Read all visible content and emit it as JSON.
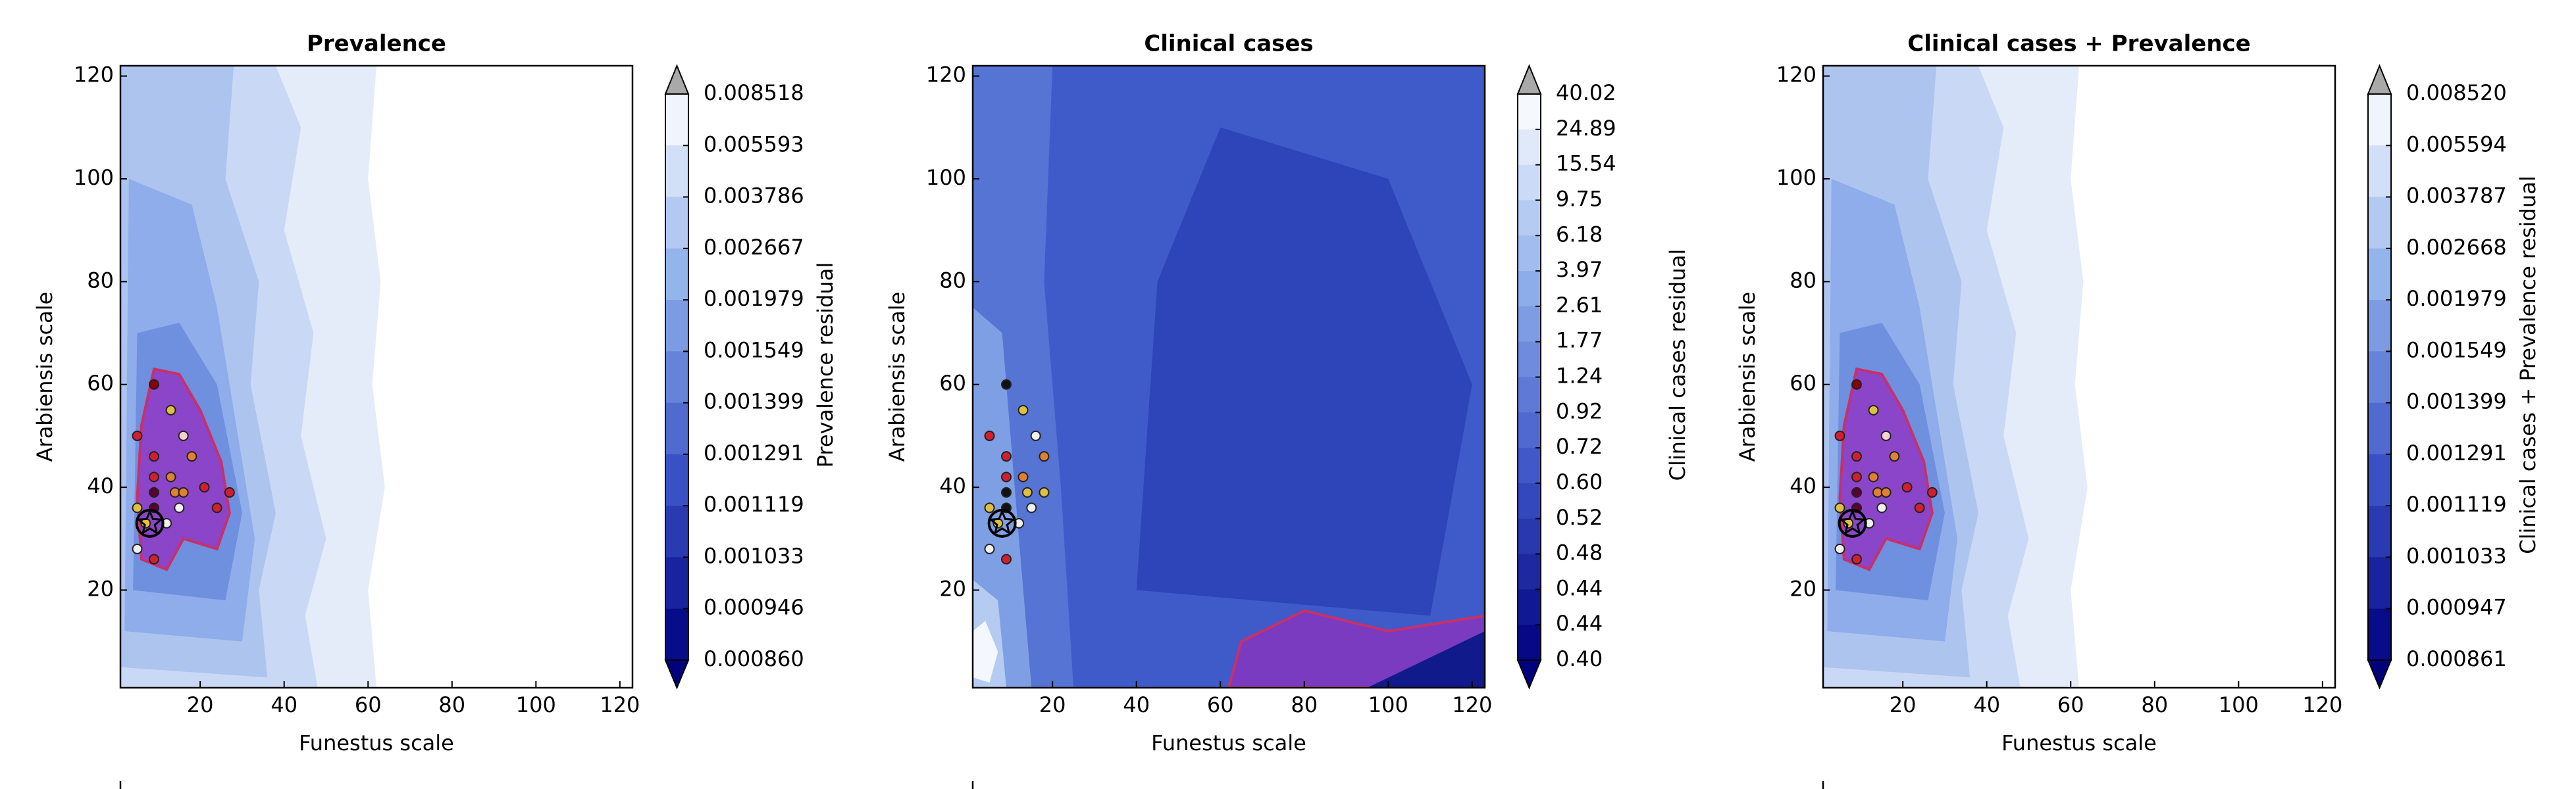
{
  "chart_data": [
    {
      "type": "contour",
      "title": "Prevalence",
      "xlabel": "Funestus scale",
      "ylabel": "Arabiensis scale",
      "xlim": [
        1,
        123
      ],
      "ylim": [
        1,
        122
      ],
      "xticks": [
        20,
        40,
        60,
        80,
        100,
        120
      ],
      "yticks": [
        20,
        40,
        60,
        80,
        100,
        120
      ],
      "colorbar": {
        "label": "Prevalence residual",
        "ticks": [
          0.008518,
          0.005593,
          0.003786,
          0.002667,
          0.001979,
          0.001549,
          0.001399,
          0.001291,
          0.001119,
          0.001033,
          0.000946,
          {
            "value": 0.00086,
            "label": "0.000860"
          }
        ],
        "colors": [
          "#ffffff",
          "#8fb0eb",
          "#3d55c8",
          "#00007f"
        ],
        "extend_colors": [
          "#a9a9a9",
          "#00007f"
        ]
      },
      "points": {
        "x": [
          9,
          13,
          5,
          9,
          16,
          18,
          9,
          13,
          9,
          14,
          16,
          9,
          5,
          15,
          7,
          12,
          5,
          9,
          24,
          21,
          27
        ],
        "y": [
          60,
          55,
          50,
          46,
          50,
          46,
          42,
          42,
          39,
          39,
          39,
          36,
          36,
          36,
          33,
          33,
          28,
          26,
          36,
          40,
          39
        ],
        "colors": [
          "#8b0000",
          "#e0c040",
          "#d02030",
          "#d02030",
          "#f5d0d0",
          "#e08030",
          "#d02030",
          "#e08030",
          "#5a0030",
          "#e08030",
          "#e08030",
          "#5a0030",
          "#e0c040",
          "#f0f0f0",
          "#e0c040",
          "#f0f0f0",
          "#f0f0f0",
          "#d02030",
          "#d02030",
          "#d02030",
          "#d02030"
        ]
      }
    },
    {
      "type": "contour",
      "title": "Clinical cases",
      "xlabel": "Funestus scale",
      "ylabel": "Arabiensis scale",
      "xlim": [
        1,
        123
      ],
      "ylim": [
        1,
        122
      ],
      "xticks": [
        20,
        40,
        60,
        80,
        100,
        120
      ],
      "yticks": [
        20,
        40,
        60,
        80,
        100,
        120
      ],
      "colorbar": {
        "label": "Clinical cases residual",
        "ticks": [
          40.02,
          24.89,
          15.54,
          9.75,
          6.18,
          3.97,
          2.61,
          1.77,
          1.24,
          0.92,
          0.72,
          {
            "value": 0.6,
            "label": "0.60"
          },
          0.52,
          0.48,
          0.44,
          0.44,
          {
            "value": 0.4,
            "label": "0.40"
          }
        ],
        "colors": [
          "#ffffff",
          "#8fb0eb",
          "#3d55c8",
          "#00007f"
        ],
        "extend_colors": [
          "#a9a9a9",
          "#00007f"
        ]
      },
      "points": {
        "x": [
          9,
          13,
          5,
          9,
          16,
          18,
          9,
          13,
          9,
          14,
          18,
          9,
          5,
          15,
          7,
          12,
          5,
          9
        ],
        "y": [
          60,
          55,
          50,
          46,
          50,
          46,
          42,
          42,
          39,
          39,
          39,
          36,
          36,
          36,
          33,
          33,
          28,
          26
        ],
        "colors": [
          "#111111",
          "#e0c040",
          "#d02030",
          "#d02030",
          "#f0f0f0",
          "#e08030",
          "#d02030",
          "#e08030",
          "#111111",
          "#e0c040",
          "#e0c040",
          "#111111",
          "#e0c040",
          "#f0f0f0",
          "#e0c040",
          "#f0f0f0",
          "#f0f0f0",
          "#d02030"
        ]
      }
    },
    {
      "type": "contour",
      "title": "Clinical cases + Prevalence",
      "xlabel": "Funestus scale",
      "ylabel": "Arabiensis scale",
      "xlim": [
        1,
        123
      ],
      "ylim": [
        1,
        122
      ],
      "xticks": [
        20,
        40,
        60,
        80,
        100,
        120
      ],
      "yticks": [
        20,
        40,
        60,
        80,
        100,
        120
      ],
      "colorbar": {
        "label": "Clinical cases + Prevalence residual",
        "ticks": [
          {
            "value": 0.00852,
            "label": "0.008520"
          },
          0.005594,
          0.003787,
          0.002668,
          0.001979,
          0.001549,
          0.001399,
          0.001291,
          0.001119,
          0.001033,
          0.000947,
          0.000861
        ],
        "colors": [
          "#ffffff",
          "#8fb0eb",
          "#3d55c8",
          "#00007f"
        ],
        "extend_colors": [
          "#a9a9a9",
          "#00007f"
        ]
      },
      "points": {
        "x": [
          9,
          13,
          5,
          9,
          16,
          18,
          9,
          13,
          9,
          14,
          16,
          9,
          5,
          15,
          7,
          12,
          5,
          9,
          24,
          21,
          27
        ],
        "y": [
          60,
          55,
          50,
          46,
          50,
          46,
          42,
          42,
          39,
          39,
          39,
          36,
          36,
          36,
          33,
          33,
          28,
          26,
          36,
          40,
          39
        ],
        "colors": [
          "#8b0000",
          "#e0c040",
          "#d02030",
          "#d02030",
          "#f5d0d0",
          "#e08030",
          "#d02030",
          "#e08030",
          "#5a0030",
          "#e08030",
          "#e08030",
          "#5a0030",
          "#e0c040",
          "#f0f0f0",
          "#e0c040",
          "#f0f0f0",
          "#f0f0f0",
          "#d02030",
          "#d02030",
          "#d02030",
          "#d02030"
        ]
      }
    }
  ]
}
